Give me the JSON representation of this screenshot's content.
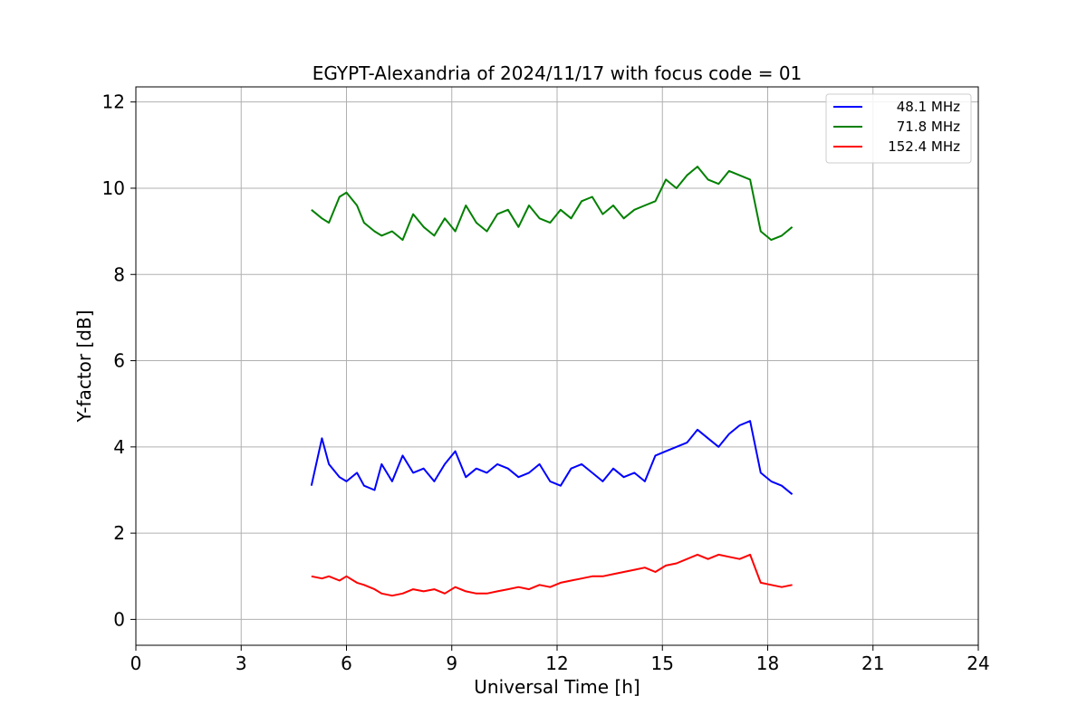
{
  "chart_data": {
    "type": "line",
    "title": "EGYPT-Alexandria of 2024/11/17 with focus code = 01",
    "xlabel": "Universal Time [h]",
    "ylabel": "Y-factor [dB]",
    "xlim": [
      0,
      24
    ],
    "ylim": [
      -0.6,
      12.35
    ],
    "xticks": [
      0,
      3,
      6,
      9,
      12,
      15,
      18,
      21,
      24
    ],
    "yticks": [
      0,
      2,
      4,
      6,
      8,
      10,
      12
    ],
    "grid": true,
    "legend_position": "top-right",
    "series": [
      {
        "name": "48.1 MHz",
        "color": "#0000ff",
        "x": [
          5.0,
          5.3,
          5.5,
          5.8,
          6.0,
          6.3,
          6.5,
          6.8,
          7.0,
          7.3,
          7.6,
          7.9,
          8.2,
          8.5,
          8.8,
          9.1,
          9.4,
          9.7,
          10.0,
          10.3,
          10.6,
          10.9,
          11.2,
          11.5,
          11.8,
          12.1,
          12.4,
          12.7,
          13.0,
          13.3,
          13.6,
          13.9,
          14.2,
          14.5,
          14.8,
          15.1,
          15.4,
          15.7,
          16.0,
          16.3,
          16.6,
          16.9,
          17.2,
          17.5,
          17.8,
          18.1,
          18.4,
          18.7
        ],
        "y": [
          3.1,
          4.2,
          3.6,
          3.3,
          3.2,
          3.4,
          3.1,
          3.0,
          3.6,
          3.2,
          3.8,
          3.4,
          3.5,
          3.2,
          3.6,
          3.9,
          3.3,
          3.5,
          3.4,
          3.6,
          3.5,
          3.3,
          3.4,
          3.6,
          3.2,
          3.1,
          3.5,
          3.6,
          3.4,
          3.2,
          3.5,
          3.3,
          3.4,
          3.2,
          3.8,
          3.9,
          4.0,
          4.1,
          4.4,
          4.2,
          4.0,
          4.3,
          4.5,
          4.6,
          3.4,
          3.2,
          3.1,
          2.9
        ]
      },
      {
        "name": "71.8 MHz",
        "color": "#008000",
        "x": [
          5.0,
          5.3,
          5.5,
          5.8,
          6.0,
          6.3,
          6.5,
          6.8,
          7.0,
          7.3,
          7.6,
          7.9,
          8.2,
          8.5,
          8.8,
          9.1,
          9.4,
          9.7,
          10.0,
          10.3,
          10.6,
          10.9,
          11.2,
          11.5,
          11.8,
          12.1,
          12.4,
          12.7,
          13.0,
          13.3,
          13.6,
          13.9,
          14.2,
          14.5,
          14.8,
          15.1,
          15.4,
          15.7,
          16.0,
          16.3,
          16.6,
          16.9,
          17.2,
          17.5,
          17.8,
          18.1,
          18.4,
          18.7
        ],
        "y": [
          9.5,
          9.3,
          9.2,
          9.8,
          9.9,
          9.6,
          9.2,
          9.0,
          8.9,
          9.0,
          8.8,
          9.4,
          9.1,
          8.9,
          9.3,
          9.0,
          9.6,
          9.2,
          9.0,
          9.4,
          9.5,
          9.1,
          9.6,
          9.3,
          9.2,
          9.5,
          9.3,
          9.7,
          9.8,
          9.4,
          9.6,
          9.3,
          9.5,
          9.6,
          9.7,
          10.2,
          10.0,
          10.3,
          10.5,
          10.2,
          10.1,
          10.4,
          10.3,
          10.2,
          9.0,
          8.8,
          8.9,
          9.1
        ]
      },
      {
        "name": "152.4 MHz",
        "color": "#ff0000",
        "x": [
          5.0,
          5.3,
          5.5,
          5.8,
          6.0,
          6.3,
          6.5,
          6.8,
          7.0,
          7.3,
          7.6,
          7.9,
          8.2,
          8.5,
          8.8,
          9.1,
          9.4,
          9.7,
          10.0,
          10.3,
          10.6,
          10.9,
          11.2,
          11.5,
          11.8,
          12.1,
          12.4,
          12.7,
          13.0,
          13.3,
          13.6,
          13.9,
          14.2,
          14.5,
          14.8,
          15.1,
          15.4,
          15.7,
          16.0,
          16.3,
          16.6,
          16.9,
          17.2,
          17.5,
          17.8,
          18.1,
          18.4,
          18.7
        ],
        "y": [
          1.0,
          0.95,
          1.0,
          0.9,
          1.0,
          0.85,
          0.8,
          0.7,
          0.6,
          0.55,
          0.6,
          0.7,
          0.65,
          0.7,
          0.6,
          0.75,
          0.65,
          0.6,
          0.6,
          0.65,
          0.7,
          0.75,
          0.7,
          0.8,
          0.75,
          0.85,
          0.9,
          0.95,
          1.0,
          1.0,
          1.05,
          1.1,
          1.15,
          1.2,
          1.1,
          1.25,
          1.3,
          1.4,
          1.5,
          1.4,
          1.5,
          1.45,
          1.4,
          1.5,
          0.85,
          0.8,
          0.75,
          0.8
        ]
      }
    ]
  }
}
